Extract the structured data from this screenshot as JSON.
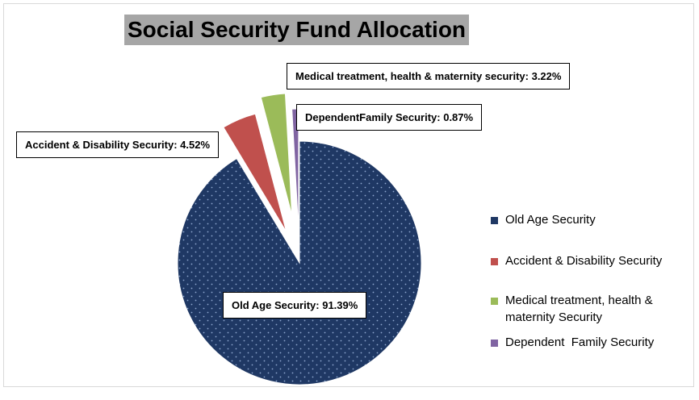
{
  "chart_data": {
    "type": "pie",
    "title": "Social Security Fund Allocation",
    "slices": [
      {
        "name": "Old Age Security",
        "value": 91.39,
        "color": "#1f3864",
        "label": "Old Age Security: 91.39%"
      },
      {
        "name": "Accident & Disability Security",
        "value": 4.52,
        "color": "#c0504d",
        "label": "Accident & Disability Security: 4.52%"
      },
      {
        "name": "Medical treatment, health & maternity Security",
        "value": 3.22,
        "color": "#9bbb59",
        "label": "Medical treatment, health & maternity security: 3.22%"
      },
      {
        "name": "Dependent Family Security",
        "value": 0.87,
        "color": "#8064a2",
        "label": "DependentFamily Security: 0.87%"
      }
    ],
    "legend": {
      "position": "right",
      "entries": [
        "Old Age Security",
        "Accident & Disability Security",
        "Medical treatment, health & maternity Security",
        "Dependent  Family Security"
      ]
    }
  }
}
